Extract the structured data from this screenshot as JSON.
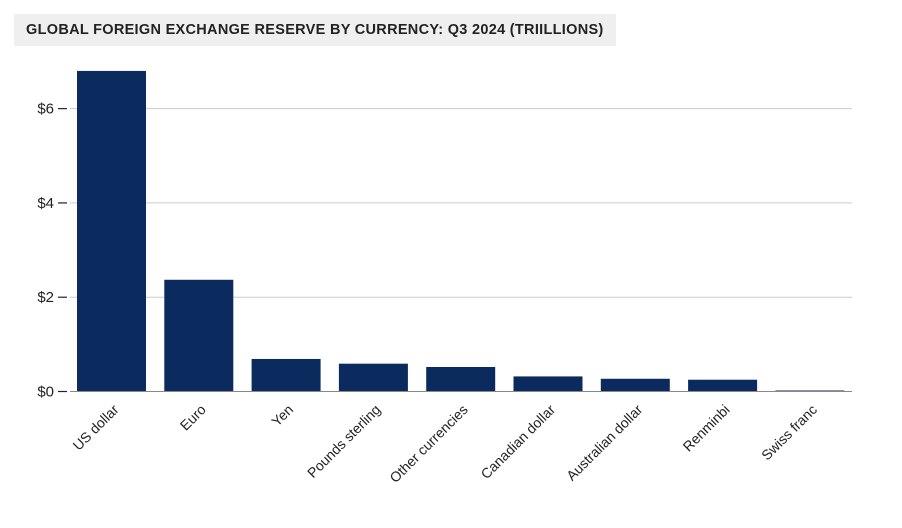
{
  "colors": {
    "bar": "#0b2b5e",
    "grid": "#cccccc",
    "axis": "#888888",
    "text": "#222222",
    "title_background": "#efefef"
  },
  "chart_data": {
    "type": "bar",
    "title": "GLOBAL FOREIGN EXCHANGE RESERVE BY CURRENCY: Q3 2024 (TRIILLIONS)",
    "xlabel": "",
    "ylabel": "",
    "categories": [
      "US dollar",
      "Euro",
      "Yen",
      "Pounds sterling",
      "Other currencies",
      "Canadian dollar",
      "Australian dollar",
      "Renminbi",
      "Swiss franc"
    ],
    "values": [
      6.8,
      2.37,
      0.69,
      0.59,
      0.52,
      0.32,
      0.27,
      0.25,
      0.02
    ],
    "ylim": [
      0,
      7
    ],
    "yticks": [
      0,
      2,
      4,
      6
    ],
    "ytick_labels": [
      "$0",
      "$2",
      "$4",
      "$6"
    ],
    "grid": true,
    "legend": "none"
  }
}
